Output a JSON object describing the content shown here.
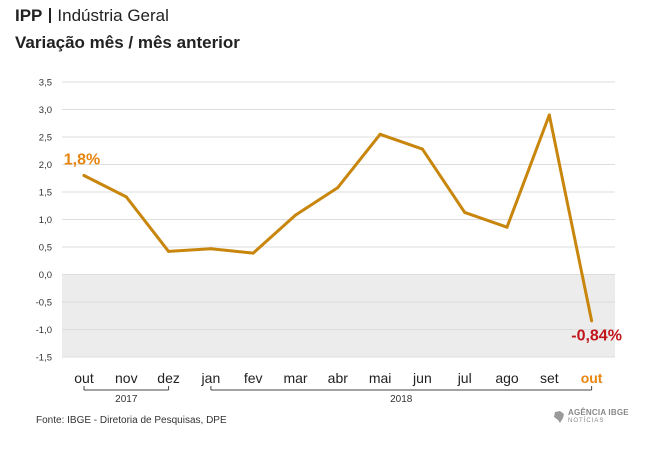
{
  "header": {
    "title_main": "IPP",
    "title_sub": "Indústria Geral",
    "subtitle": "Variação mês / mês anterior"
  },
  "footer": {
    "source": "Fonte: IBGE - Diretoria de Pesquisas, DPE",
    "logo_line1": "AGÊNCIA IBGE",
    "logo_line2": "NOTÍCIAS"
  },
  "colors": {
    "line": "#c8860d",
    "label_first": "#e8850f",
    "label_last": "#c0161c",
    "last_month": "#e8850f",
    "negative_band": "#ececec",
    "grid": "#dddddd"
  },
  "chart_data": {
    "type": "line",
    "categories": [
      "out",
      "nov",
      "dez",
      "jan",
      "fev",
      "mar",
      "abr",
      "mai",
      "jun",
      "jul",
      "ago",
      "set",
      "out"
    ],
    "values": [
      1.8,
      1.41,
      0.42,
      0.47,
      0.39,
      1.08,
      1.58,
      2.55,
      2.28,
      1.13,
      0.86,
      2.9,
      -0.84
    ],
    "ylim": [
      -1.5,
      3.5
    ],
    "yticks": [
      "3,5",
      "3,0",
      "2,5",
      "2,0",
      "1,5",
      "1,0",
      "0,5",
      "0,0",
      "-0,5",
      "-1,0",
      "-1,5"
    ],
    "ytick_values": [
      3.5,
      3.0,
      2.5,
      2.0,
      1.5,
      1.0,
      0.5,
      0.0,
      -0.5,
      -1.0,
      -1.5
    ],
    "year_groups": [
      {
        "label": "2017",
        "from": 0,
        "to": 2
      },
      {
        "label": "2018",
        "from": 3,
        "to": 12
      }
    ],
    "data_labels": [
      {
        "index": 0,
        "text": "1,8%"
      },
      {
        "index": 12,
        "text": "-0,84%"
      }
    ],
    "grid": true,
    "negative_region_shaded": true
  }
}
